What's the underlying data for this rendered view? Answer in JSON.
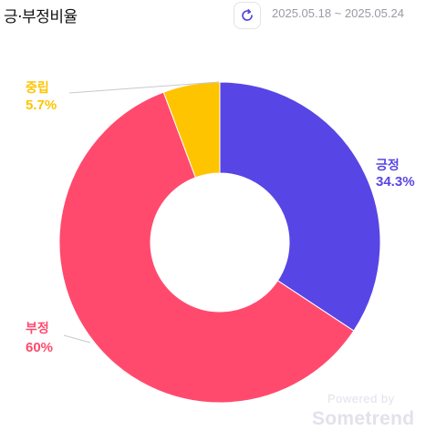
{
  "header": {
    "title": "긍·부정비율",
    "date_range": "2025.05.18 ~ 2025.05.24",
    "refresh_icon": "refresh-icon"
  },
  "chart_data": {
    "type": "pie",
    "donut": true,
    "title": "긍·부정비율",
    "slices": [
      {
        "name": "긍정",
        "value": 34.3,
        "label": "34.3%",
        "color": "#5845E6"
      },
      {
        "name": "부정",
        "value": 60,
        "label": "60%",
        "color": "#FF4A6E"
      },
      {
        "name": "중립",
        "value": 5.7,
        "label": "5.7%",
        "color": "#FFC400"
      }
    ]
  },
  "watermark": {
    "powered_by": "Powered by",
    "brand": "Sometrend"
  }
}
